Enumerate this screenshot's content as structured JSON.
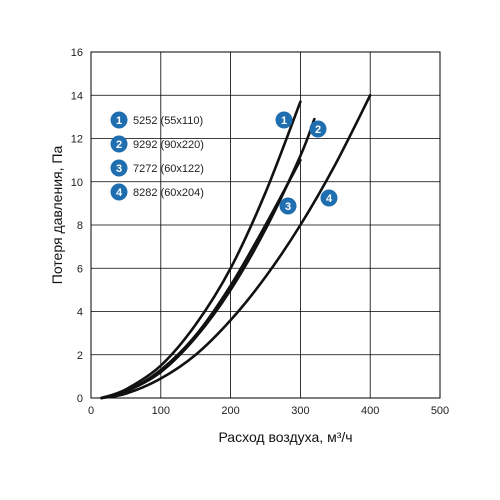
{
  "chart_data": {
    "type": "line",
    "xlabel": "Расход воздуха, м³/ч",
    "ylabel": "Потеря давления, Па",
    "xlim": [
      0,
      500
    ],
    "ylim": [
      0,
      16
    ],
    "xticks": [
      0,
      100,
      200,
      300,
      400,
      500
    ],
    "yticks": [
      0,
      2,
      4,
      6,
      8,
      10,
      12,
      14,
      16
    ],
    "grid": true,
    "legend_position": "top-left",
    "colors": {
      "line": "#111111",
      "badge": "#1f6eb0",
      "grid": "#000000"
    },
    "series": [
      {
        "name": "5252 (55x110)",
        "badge": "1",
        "x": [
          15,
          50,
          100,
          150,
          200,
          250,
          300
        ],
        "y": [
          0.0,
          0.4,
          1.5,
          3.4,
          6.0,
          9.5,
          13.7
        ]
      },
      {
        "name": "9292 (90x220)",
        "badge": "2",
        "x": [
          15,
          50,
          100,
          150,
          200,
          250,
          300,
          320
        ],
        "y": [
          0.0,
          0.3,
          1.2,
          2.8,
          5.0,
          7.8,
          11.2,
          12.9
        ]
      },
      {
        "name": "7272 (60x122)",
        "badge": "3",
        "x": [
          15,
          50,
          100,
          150,
          200,
          250,
          300
        ],
        "y": [
          0.0,
          0.3,
          1.3,
          2.9,
          5.2,
          8.0,
          11.0
        ]
      },
      {
        "name": "8282 (60x204)",
        "badge": "4",
        "x": [
          15,
          50,
          100,
          150,
          200,
          250,
          300,
          350,
          400
        ],
        "y": [
          0.0,
          0.2,
          0.9,
          2.0,
          3.6,
          5.6,
          8.0,
          10.8,
          14.0
        ]
      }
    ]
  }
}
